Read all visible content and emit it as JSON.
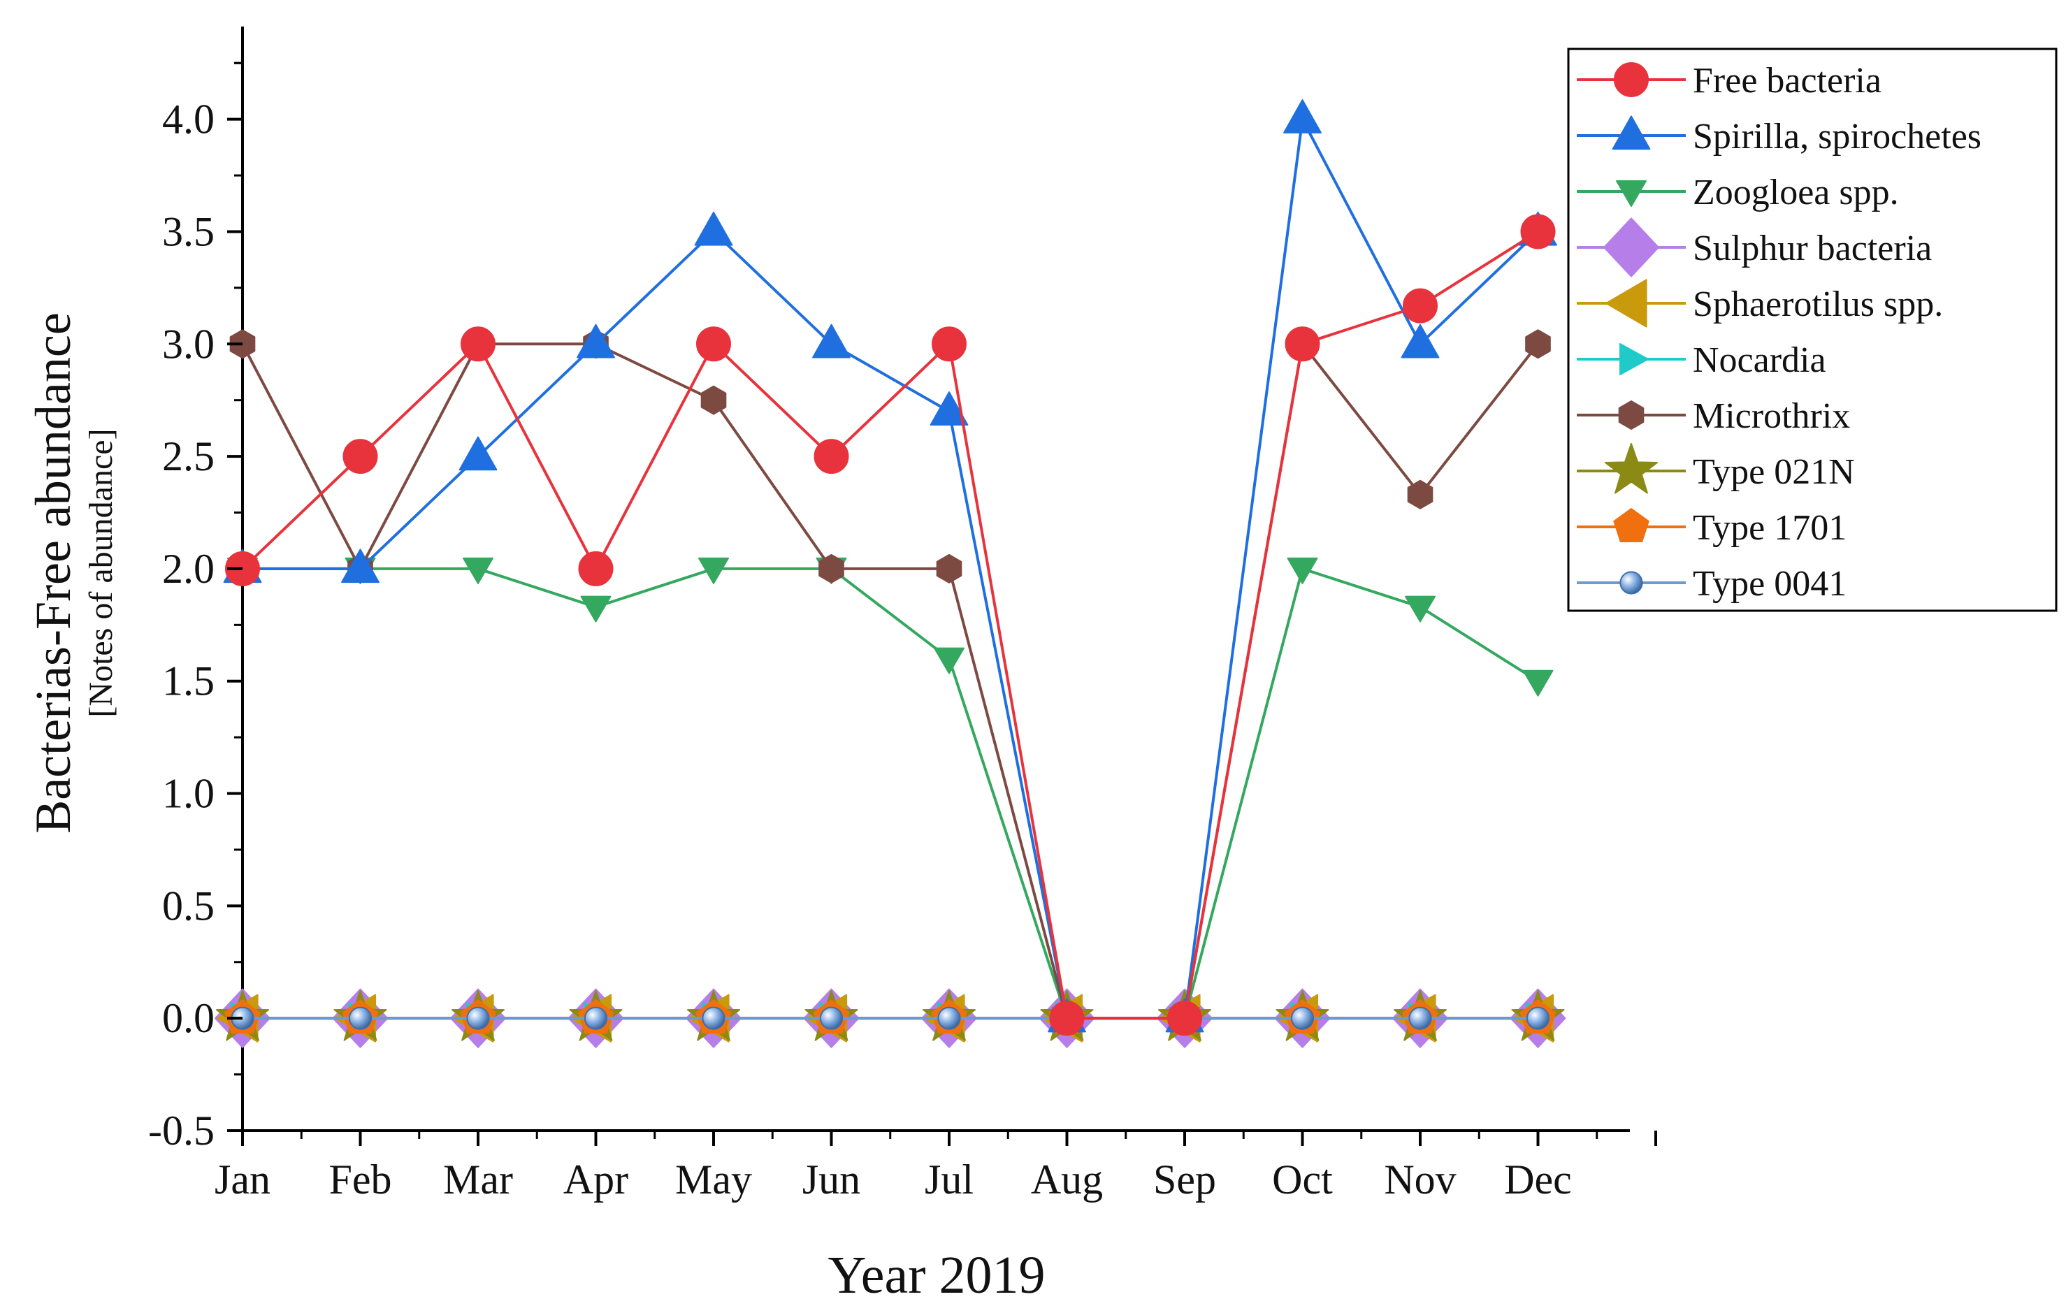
{
  "chart_data": {
    "type": "line",
    "title": "",
    "xlabel": "Year 2019",
    "ylabel": "Bacterias-Free abundance",
    "ylabel_sub": "[Notes of abundance]",
    "categories": [
      "Jan",
      "Feb",
      "Mar",
      "Apr",
      "May",
      "Jun",
      "Jul",
      "Aug",
      "Sep",
      "Oct",
      "Nov",
      "Dec"
    ],
    "ylim": [
      -0.5,
      4.4
    ],
    "yticks": [
      "4.0",
      "3.5",
      "3.0",
      "2.5",
      "2.0",
      "1.5",
      "1.0",
      "0.5",
      "0.0",
      "-0.5"
    ],
    "ytick_values": [
      4.0,
      3.5,
      3.0,
      2.5,
      2.0,
      1.5,
      1.0,
      0.5,
      0.0,
      -0.5
    ],
    "grid": false,
    "legend_position": "top-right",
    "series": [
      {
        "name": "Free bacteria",
        "marker": "circle",
        "color": "#e8323c",
        "values": [
          2.0,
          2.5,
          3.0,
          2.0,
          3.0,
          2.5,
          3.0,
          0.0,
          0.0,
          3.0,
          3.17,
          3.5
        ]
      },
      {
        "name": "Spirilla, spirochetes",
        "marker": "triangle-up",
        "color": "#1f6fe0",
        "values": [
          2.0,
          2.0,
          2.5,
          3.0,
          3.5,
          3.0,
          2.7,
          0.0,
          0.0,
          4.0,
          3.0,
          3.5
        ]
      },
      {
        "name": "Zoogloea spp.",
        "marker": "triangle-down",
        "color": "#35a860",
        "values": [
          2.0,
          2.0,
          2.0,
          1.83,
          2.0,
          2.0,
          1.6,
          0.0,
          0.0,
          2.0,
          1.83,
          1.5
        ]
      },
      {
        "name": "Sulphur bacteria",
        "marker": "diamond",
        "color": "#b67ee8",
        "values": [
          0,
          0,
          0,
          0,
          0,
          0,
          0,
          0,
          0,
          0,
          0,
          0
        ]
      },
      {
        "name": "Sphaerotilus spp.",
        "marker": "triangle-left",
        "color": "#c99a0c",
        "values": [
          0,
          0,
          0,
          0,
          0,
          0,
          0,
          0,
          0,
          0,
          0,
          0
        ]
      },
      {
        "name": "Nocardia",
        "marker": "triangle-right",
        "color": "#1ecbc8",
        "values": [
          0,
          0,
          0,
          0,
          0,
          0,
          0,
          0,
          0,
          0,
          0,
          0
        ]
      },
      {
        "name": "Microthrix",
        "marker": "hexagon",
        "color": "#7d4a42",
        "values": [
          3.0,
          2.0,
          3.0,
          3.0,
          2.75,
          2.0,
          2.0,
          0.0,
          0.0,
          3.0,
          2.33,
          3.0
        ]
      },
      {
        "name": "Type 021N",
        "marker": "star",
        "color": "#8a8a14",
        "values": [
          0,
          0,
          0,
          0,
          0,
          0,
          0,
          0,
          0,
          0,
          0,
          0
        ]
      },
      {
        "name": "Type 1701",
        "marker": "pentagon",
        "color": "#f07010",
        "values": [
          0,
          0,
          0,
          0,
          0,
          0,
          0,
          0,
          0,
          0,
          0,
          0
        ]
      },
      {
        "name": "Type 0041",
        "marker": "sphere",
        "color": "#6b9ad4",
        "values": [
          0,
          0,
          0,
          0,
          0,
          0,
          0,
          0,
          0,
          0,
          0,
          0
        ]
      }
    ]
  }
}
